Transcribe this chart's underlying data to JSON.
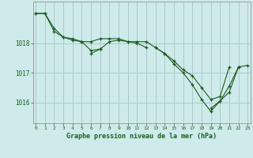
{
  "title": "Graphe pression niveau de la mer (hPa)",
  "background_color": "#ceeaea",
  "grid_color": "#aacccc",
  "line_color": "#1e5c1e",
  "x_ticks": [
    0,
    1,
    2,
    3,
    4,
    5,
    6,
    7,
    8,
    9,
    10,
    11,
    12,
    13,
    14,
    15,
    16,
    17,
    18,
    19,
    20,
    21,
    22,
    23
  ],
  "y_ticks": [
    1016,
    1017,
    1018
  ],
  "ylim": [
    1015.3,
    1019.4
  ],
  "xlim": [
    -0.3,
    23.3
  ],
  "series1": [
    1019.0,
    1019.0,
    1018.5,
    1018.2,
    1018.15,
    1018.05,
    1018.05,
    1018.15,
    1018.15,
    1018.15,
    1018.05,
    1018.05,
    1018.05,
    1017.85,
    1017.65,
    1017.4,
    1017.1,
    1016.9,
    1016.5,
    1016.1,
    1016.2,
    1017.2,
    null,
    null
  ],
  "series2": [
    1019.0,
    1019.0,
    1018.4,
    1018.2,
    1018.1,
    1018.05,
    1017.75,
    1017.8,
    1018.05,
    1018.1,
    1018.05,
    1018.0,
    1017.85,
    null,
    null,
    null,
    null,
    null,
    null,
    null,
    null,
    null,
    null,
    null
  ],
  "series3": [
    null,
    null,
    null,
    null,
    null,
    null,
    1017.65,
    1017.8,
    null,
    null,
    null,
    null,
    null,
    1017.85,
    1017.65,
    1017.3,
    1017.0,
    1016.6,
    1016.1,
    1015.7,
    1016.05,
    1016.35,
    1017.2,
    null
  ],
  "series4": [
    null,
    null,
    null,
    null,
    null,
    null,
    null,
    null,
    null,
    null,
    null,
    null,
    null,
    null,
    null,
    null,
    null,
    null,
    null,
    1015.8,
    1016.05,
    1016.55,
    1017.2,
    1017.25
  ]
}
